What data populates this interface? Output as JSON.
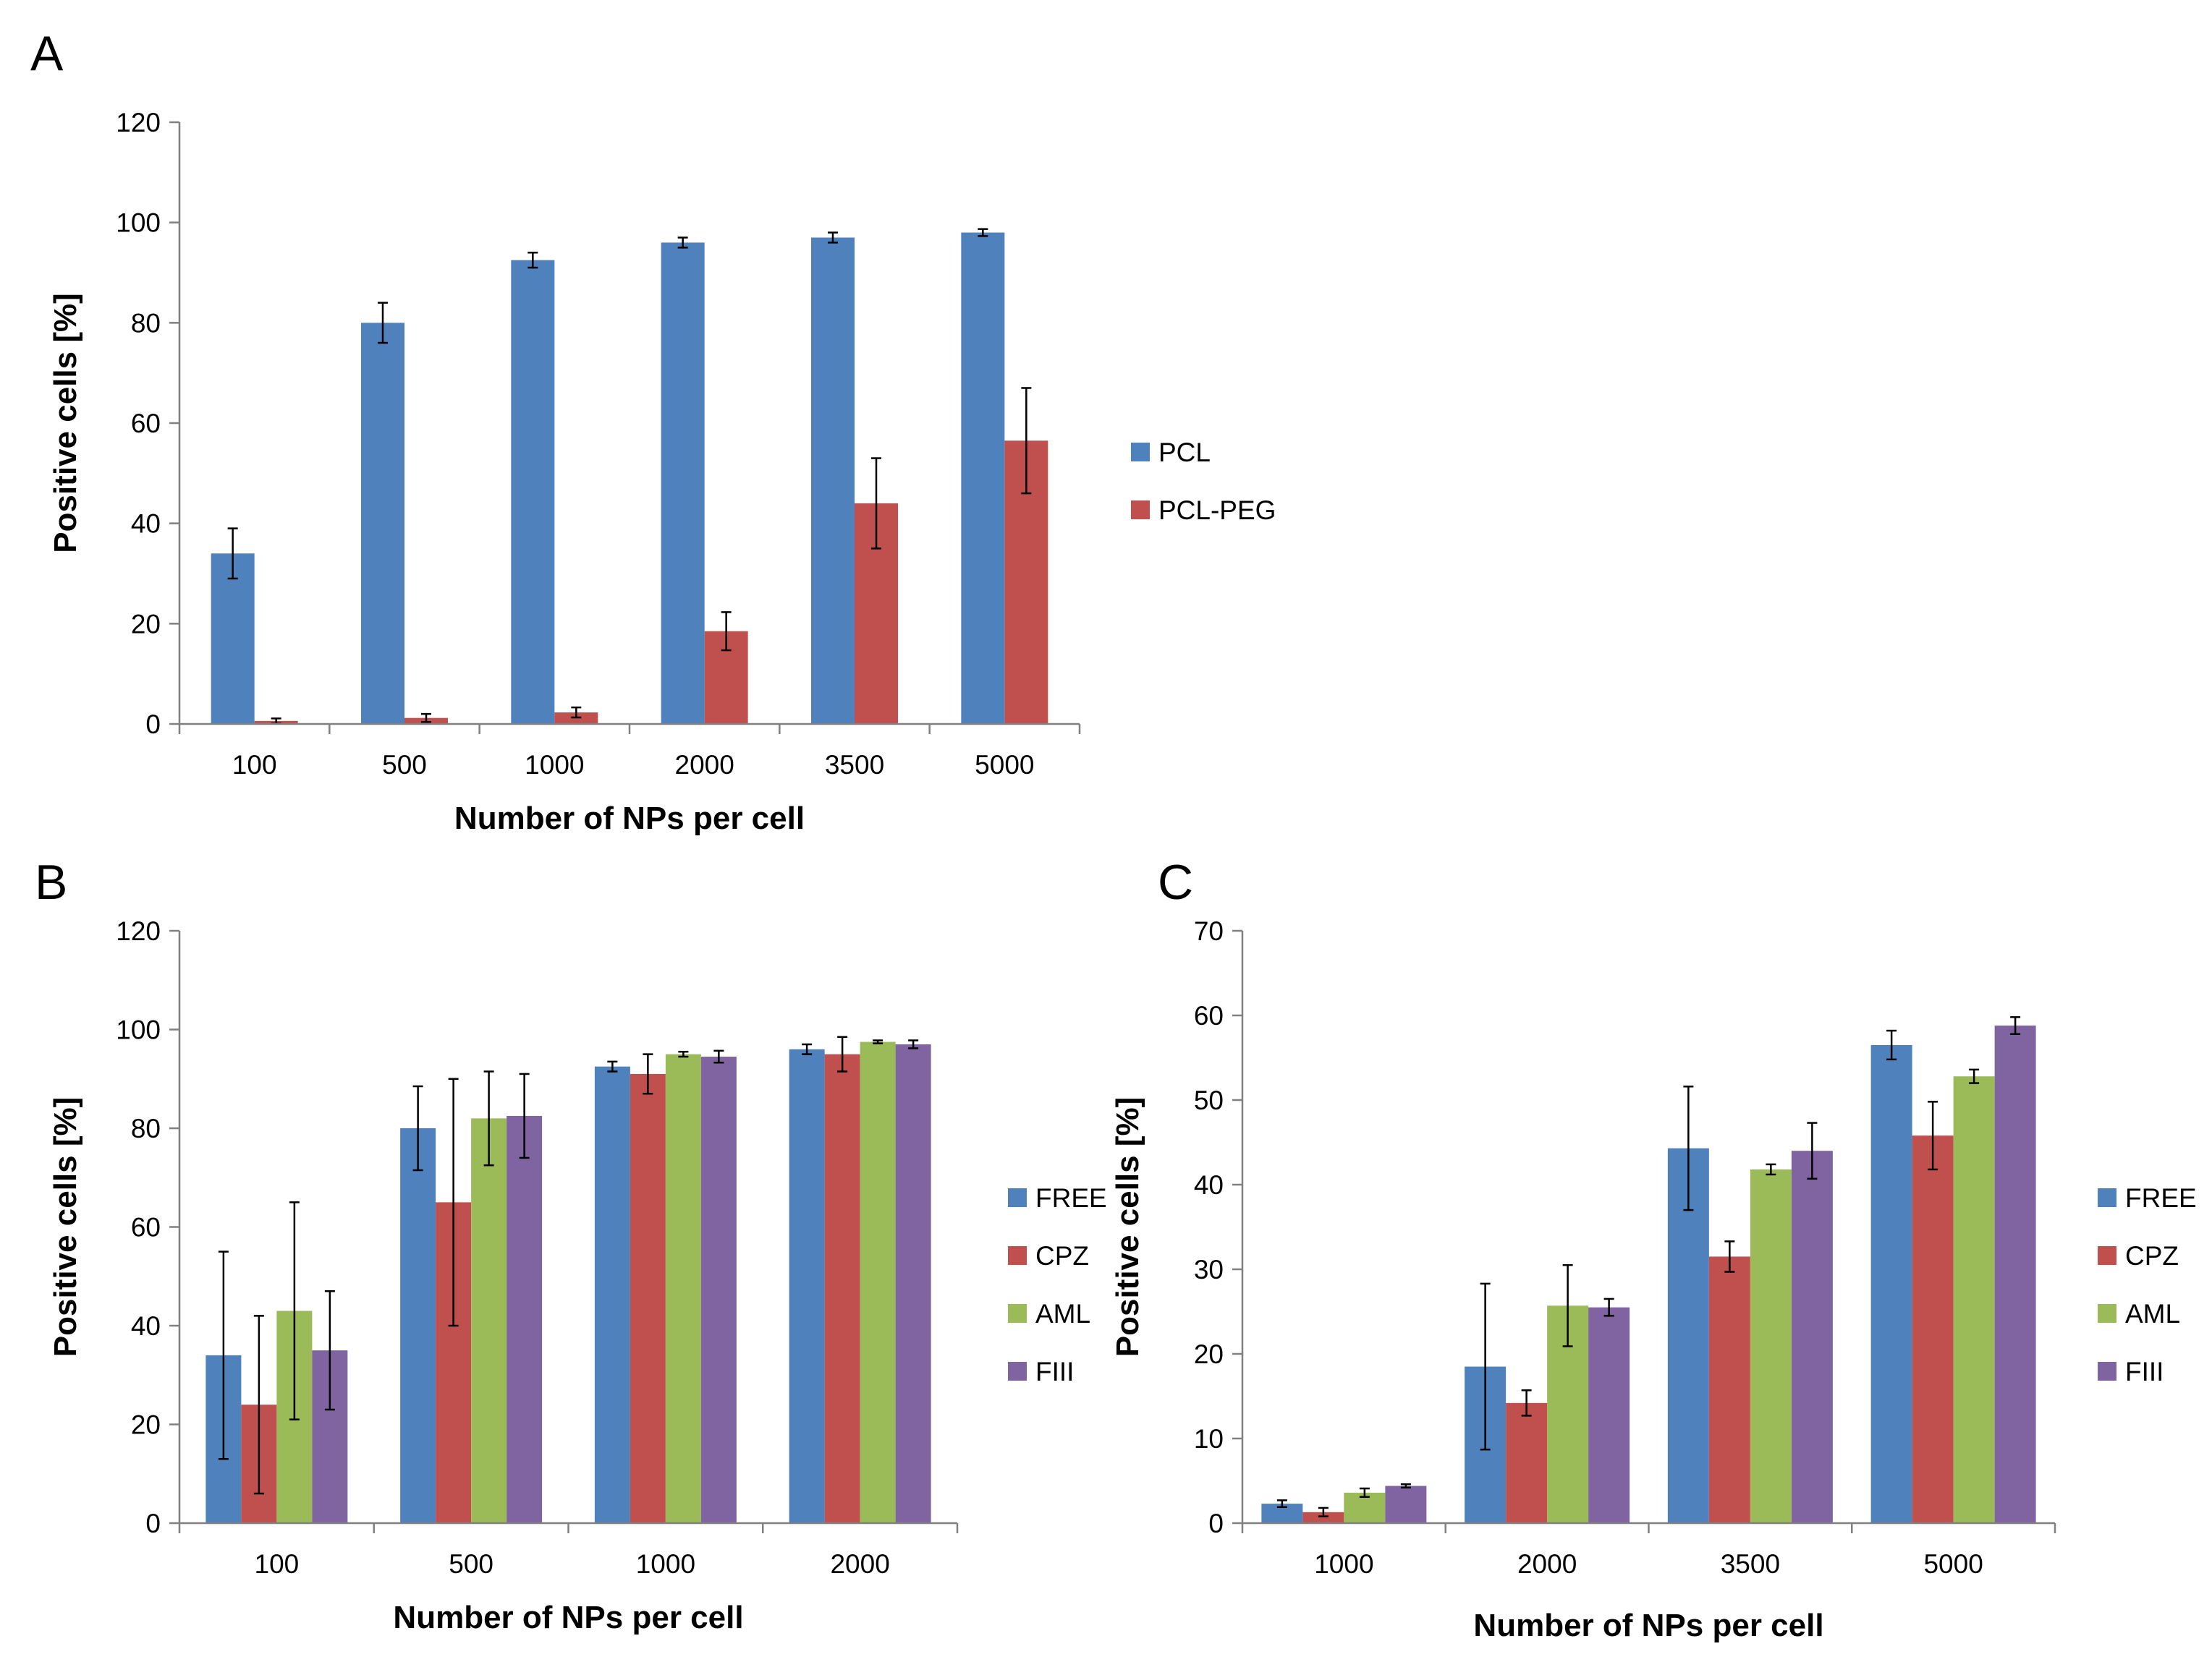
{
  "chart_data": [
    {
      "panel": "A",
      "type": "bar",
      "xlabel": "Number of NPs per cell",
      "ylabel": "Positive cells [%]",
      "ylim": [
        0,
        120
      ],
      "yticks": [
        0,
        20,
        40,
        60,
        80,
        100,
        120
      ],
      "grid": false,
      "legend_position": "right",
      "categories": [
        "100",
        "500",
        "1000",
        "2000",
        "3500",
        "5000"
      ],
      "series": [
        {
          "name": "PCL",
          "color": "#4F81BD",
          "values": [
            34,
            80,
            92.5,
            96,
            97,
            98
          ],
          "errors": [
            5,
            4,
            1.5,
            1,
            1,
            0.7
          ]
        },
        {
          "name": "PCL-PEG",
          "color": "#C0504D",
          "values": [
            0.6,
            1.2,
            2.3,
            18.5,
            44,
            56.5
          ],
          "errors": [
            0.5,
            0.8,
            1,
            3.8,
            9,
            10.5
          ]
        }
      ]
    },
    {
      "panel": "B",
      "type": "bar",
      "xlabel": "Number of NPs per cell",
      "ylabel": "Positive cells [%]",
      "ylim": [
        0,
        120
      ],
      "yticks": [
        0,
        20,
        40,
        60,
        80,
        100,
        120
      ],
      "grid": false,
      "legend_position": "right",
      "categories": [
        "100",
        "500",
        "1000",
        "2000"
      ],
      "series": [
        {
          "name": "FREE",
          "color": "#4F81BD",
          "values": [
            34,
            80,
            92.5,
            96
          ],
          "errors": [
            21,
            8.5,
            1,
            1
          ]
        },
        {
          "name": "CPZ",
          "color": "#C0504D",
          "values": [
            24,
            65,
            91,
            95
          ],
          "errors": [
            18,
            25,
            4,
            3.5
          ]
        },
        {
          "name": "AML",
          "color": "#9BBB59",
          "values": [
            43,
            82,
            95,
            97.5
          ],
          "errors": [
            22,
            9.5,
            0.5,
            0.3
          ]
        },
        {
          "name": "FIII",
          "color": "#8064A2",
          "values": [
            35,
            82.5,
            94.5,
            97
          ],
          "errors": [
            12,
            8.5,
            1.2,
            0.8
          ]
        }
      ]
    },
    {
      "panel": "C",
      "type": "bar",
      "xlabel": "Number of NPs per cell",
      "ylabel": "Positive cells [%]",
      "ylim": [
        0,
        70
      ],
      "yticks": [
        0,
        10,
        20,
        30,
        40,
        50,
        60,
        70
      ],
      "grid": false,
      "legend_position": "right",
      "categories": [
        "1000",
        "2000",
        "3500",
        "5000"
      ],
      "series": [
        {
          "name": "FREE",
          "color": "#4F81BD",
          "values": [
            2.3,
            18.5,
            44.3,
            56.5
          ],
          "errors": [
            0.4,
            9.8,
            7.3,
            1.7
          ]
        },
        {
          "name": "CPZ",
          "color": "#C0504D",
          "values": [
            1.3,
            14.2,
            31.5,
            45.8
          ],
          "errors": [
            0.5,
            1.5,
            1.8,
            4
          ]
        },
        {
          "name": "AML",
          "color": "#9BBB59",
          "values": [
            3.6,
            25.7,
            41.8,
            52.8
          ],
          "errors": [
            0.5,
            4.8,
            0.6,
            0.8
          ]
        },
        {
          "name": "FIII",
          "color": "#8064A2",
          "values": [
            4.4,
            25.5,
            44,
            58.8
          ],
          "errors": [
            0.2,
            1,
            3.3,
            1
          ]
        }
      ]
    }
  ]
}
